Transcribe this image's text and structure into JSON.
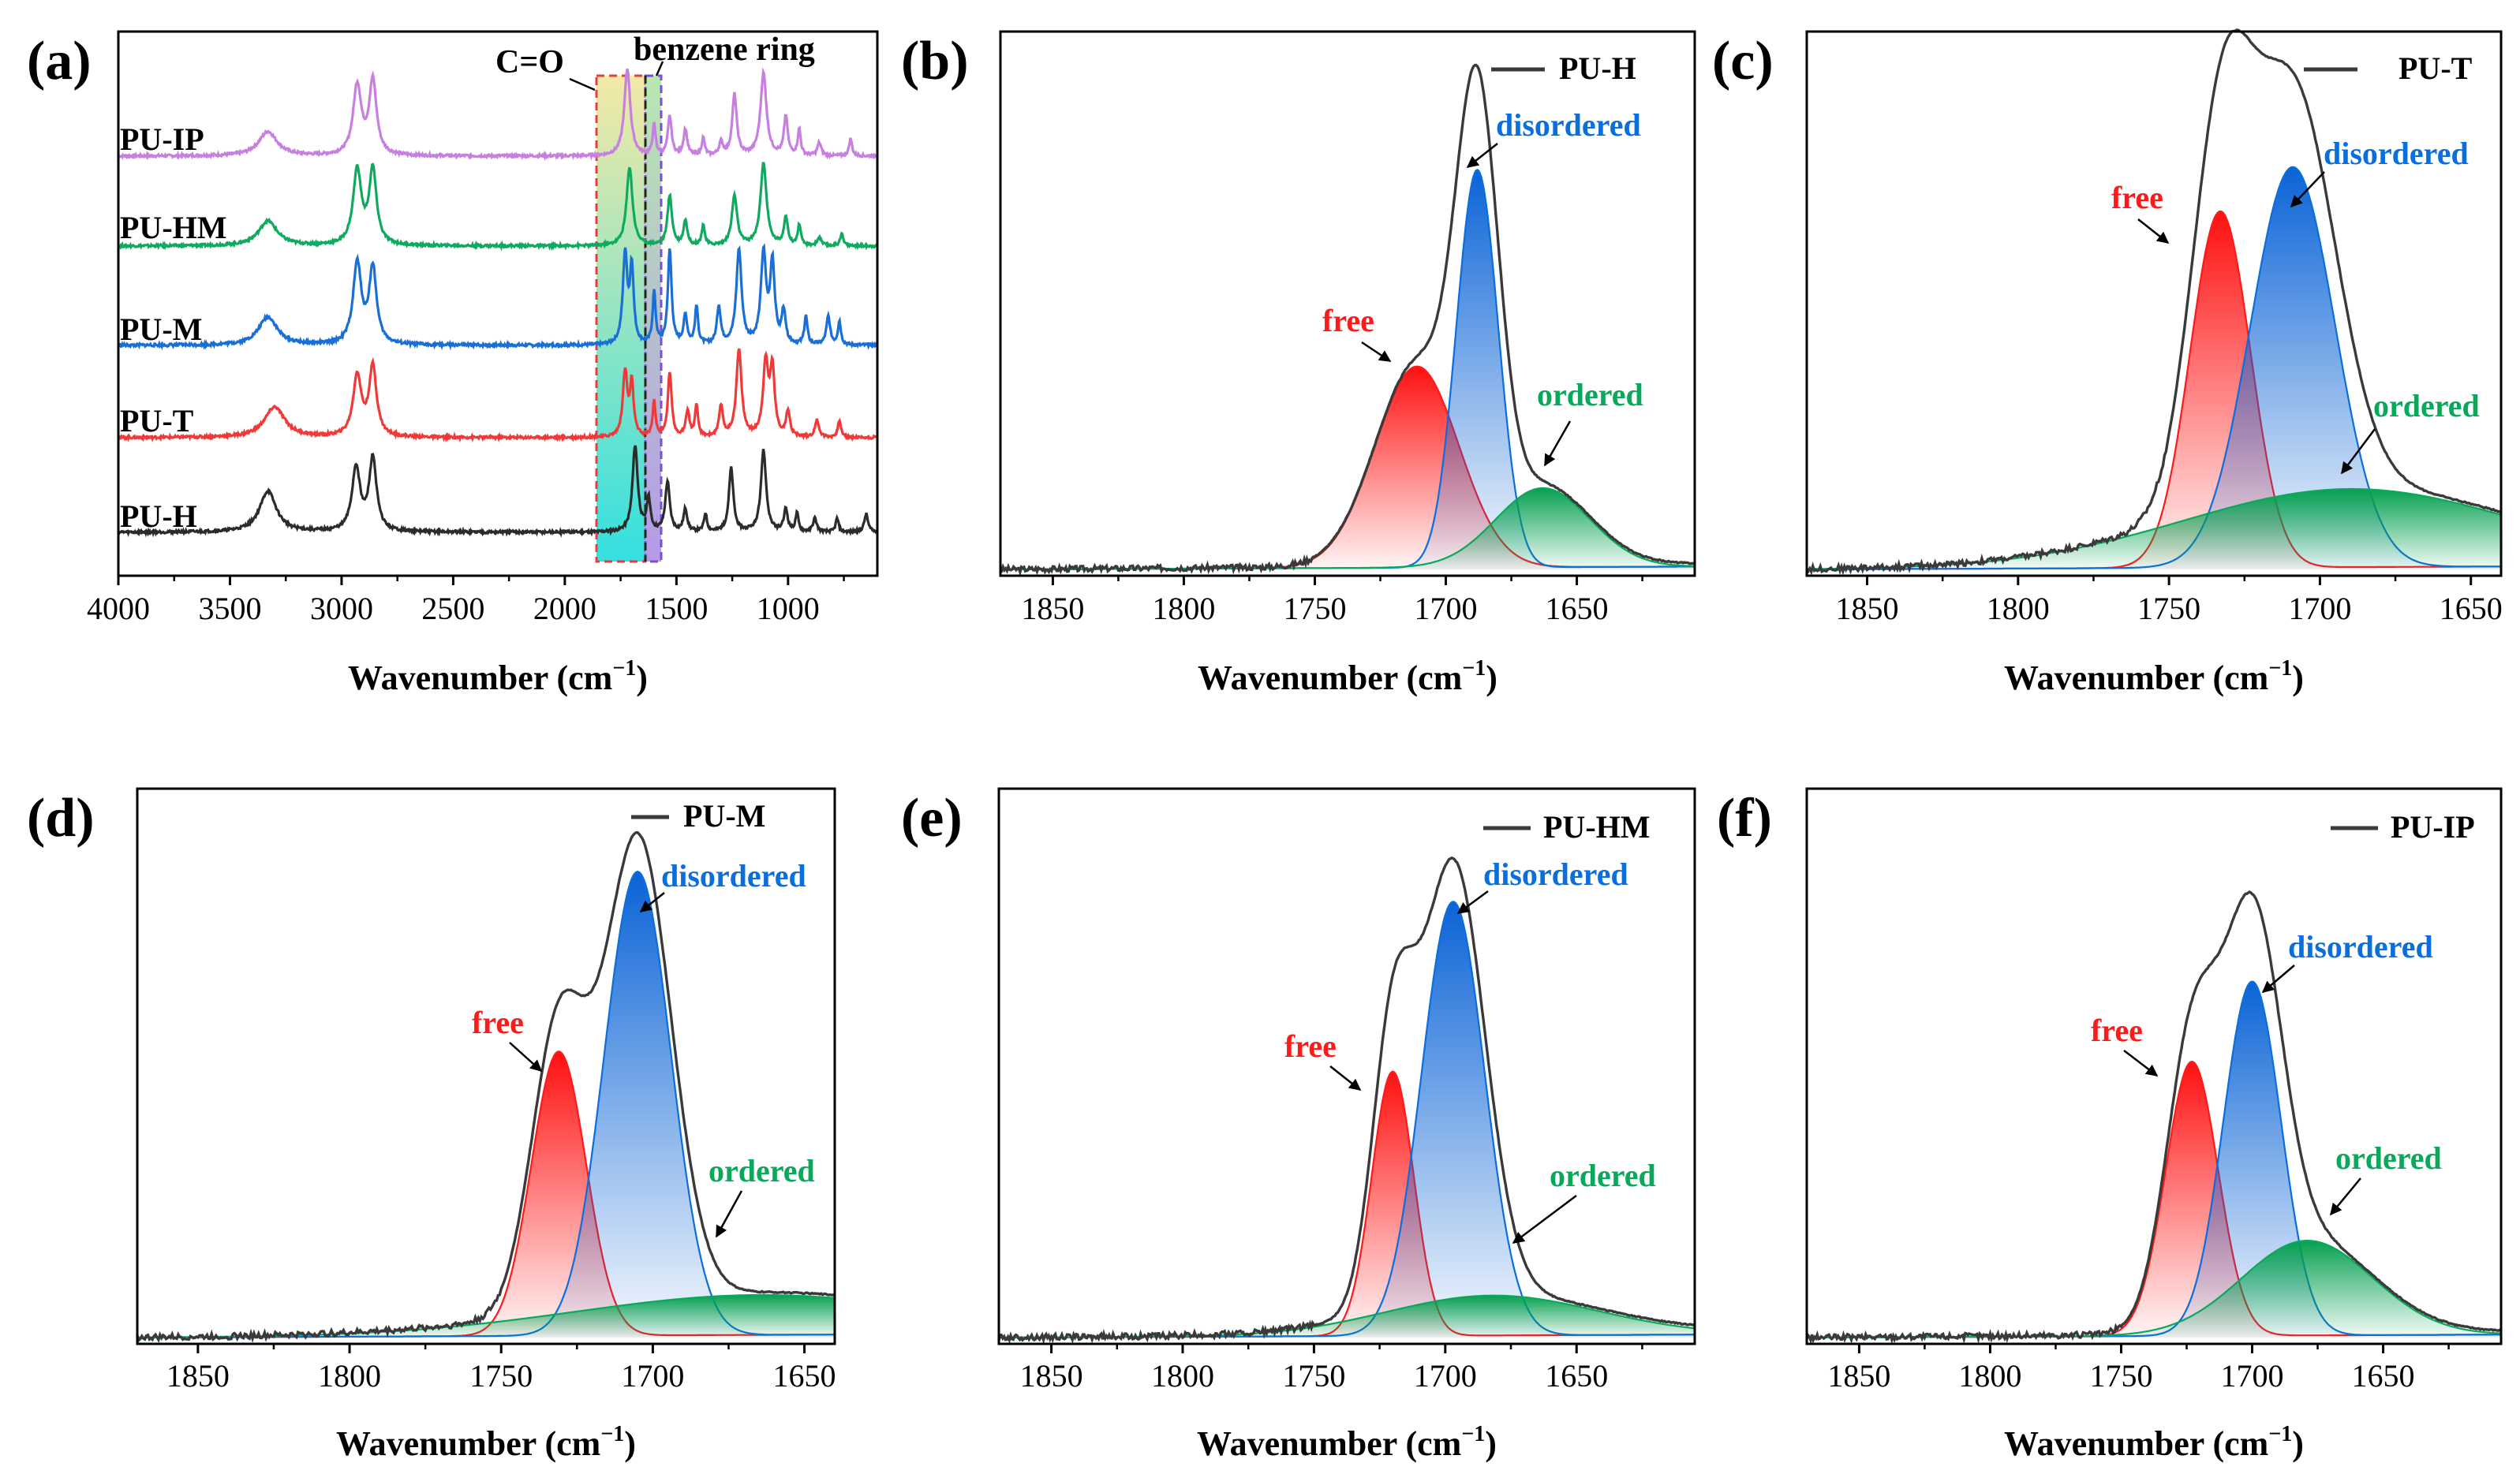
{
  "chart_data": [
    {
      "panel": "(a)",
      "type": "line",
      "xlabel": "Wavenumber (cm⁻¹)",
      "xlim": [
        4000,
        600
      ],
      "xticks": [
        4000,
        3500,
        3000,
        2500,
        2000,
        1500,
        1000
      ],
      "annotations": [
        "C=O",
        "benzene ring"
      ],
      "series": [
        {
          "name": "PU-IP",
          "color": "#c77fe0",
          "peaks": [
            [
              3330,
              0.28,
              50
            ],
            [
              2930,
              0.8,
              22
            ],
            [
              2860,
              0.85,
              20
            ],
            [
              1720,
              1.0,
              16
            ],
            [
              1600,
              0.35,
              8
            ],
            [
              1530,
              0.45,
              10
            ],
            [
              1460,
              0.3,
              10
            ],
            [
              1380,
              0.2,
              8
            ],
            [
              1300,
              0.15,
              10
            ],
            [
              1240,
              0.7,
              12
            ],
            [
              1110,
              0.95,
              16
            ],
            [
              1010,
              0.45,
              10
            ],
            [
              950,
              0.3,
              8
            ],
            [
              860,
              0.15,
              10
            ],
            [
              720,
              0.2,
              8
            ]
          ]
        },
        {
          "name": "PU-HM",
          "color": "#0faa60",
          "peaks": [
            [
              3330,
              0.3,
              50
            ],
            [
              2930,
              0.9,
              22
            ],
            [
              2860,
              0.9,
              20
            ],
            [
              1710,
              0.95,
              16
            ],
            [
              1530,
              0.6,
              12
            ],
            [
              1460,
              0.3,
              10
            ],
            [
              1380,
              0.25,
              8
            ],
            [
              1240,
              0.6,
              14
            ],
            [
              1110,
              1.0,
              16
            ],
            [
              1010,
              0.35,
              10
            ],
            [
              950,
              0.25,
              8
            ],
            [
              860,
              0.1,
              10
            ],
            [
              760,
              0.15,
              8
            ]
          ]
        },
        {
          "name": "PU-M",
          "color": "#1a6fd6",
          "peaks": [
            [
              3330,
              0.3,
              50
            ],
            [
              2930,
              0.85,
              22
            ],
            [
              2860,
              0.8,
              20
            ],
            [
              1730,
              0.95,
              12
            ],
            [
              1700,
              0.8,
              10
            ],
            [
              1600,
              0.55,
              8
            ],
            [
              1530,
              1.0,
              10
            ],
            [
              1460,
              0.3,
              10
            ],
            [
              1410,
              0.4,
              8
            ],
            [
              1310,
              0.4,
              10
            ],
            [
              1220,
              1.0,
              14
            ],
            [
              1110,
              0.95,
              14
            ],
            [
              1070,
              0.85,
              12
            ],
            [
              1020,
              0.35,
              10
            ],
            [
              920,
              0.3,
              8
            ],
            [
              820,
              0.3,
              10
            ],
            [
              770,
              0.25,
              8
            ]
          ]
        },
        {
          "name": "PU-T",
          "color": "#f03a3a",
          "peaks": [
            [
              3300,
              0.35,
              55
            ],
            [
              2930,
              0.7,
              22
            ],
            [
              2860,
              0.8,
              20
            ],
            [
              1730,
              0.75,
              12
            ],
            [
              1700,
              0.6,
              10
            ],
            [
              1600,
              0.4,
              8
            ],
            [
              1530,
              0.75,
              10
            ],
            [
              1450,
              0.3,
              10
            ],
            [
              1410,
              0.35,
              8
            ],
            [
              1300,
              0.35,
              10
            ],
            [
              1220,
              1.0,
              14
            ],
            [
              1100,
              0.85,
              14
            ],
            [
              1070,
              0.75,
              12
            ],
            [
              1000,
              0.3,
              10
            ],
            [
              870,
              0.2,
              10
            ],
            [
              770,
              0.2,
              8
            ]
          ]
        },
        {
          "name": "PU-H",
          "color": "#2b2b2b",
          "peaks": [
            [
              3330,
              0.45,
              45
            ],
            [
              2935,
              0.7,
              22
            ],
            [
              2860,
              0.8,
              20
            ],
            [
              1685,
              0.95,
              14
            ],
            [
              1625,
              0.35,
              10
            ],
            [
              1540,
              0.55,
              12
            ],
            [
              1460,
              0.25,
              10
            ],
            [
              1370,
              0.2,
              8
            ],
            [
              1255,
              0.7,
              12
            ],
            [
              1110,
              0.9,
              14
            ],
            [
              1010,
              0.25,
              10
            ],
            [
              960,
              0.2,
              8
            ],
            [
              880,
              0.15,
              10
            ],
            [
              780,
              0.15,
              8
            ],
            [
              650,
              0.2,
              10
            ]
          ]
        }
      ]
    },
    {
      "panel": "(b)",
      "type": "line",
      "title": "PU-H",
      "xlabel": "Wavenumber (cm⁻¹)",
      "xlim": [
        1870,
        1605
      ],
      "xticks": [
        1850,
        1800,
        1750,
        1700,
        1650
      ],
      "ylim": [
        0,
        1.07
      ],
      "baseline_left": 0.012,
      "components": [
        {
          "name": "free",
          "center": 1711,
          "height": 0.42,
          "width": 16
        },
        {
          "name": "disordered",
          "center": 1688,
          "height": 0.83,
          "width": 8
        },
        {
          "name": "ordered",
          "center": 1663,
          "height": 0.165,
          "width": 18
        }
      ]
    },
    {
      "panel": "(c)",
      "type": "line",
      "title": "PU-T",
      "xlabel": "Wavenumber (cm⁻¹)",
      "xlim": [
        1870,
        1640
      ],
      "xticks": [
        1850,
        1800,
        1750,
        1700,
        1650
      ],
      "ylim": [
        0,
        1.05
      ],
      "baseline_left": 0.012,
      "components": [
        {
          "name": "free",
          "center": 1733,
          "height": 0.73,
          "width": 10
        },
        {
          "name": "disordered",
          "center": 1709,
          "height": 0.82,
          "width": 14
        },
        {
          "name": "ordered",
          "center": 1690,
          "height": 0.16,
          "width": 55
        }
      ]
    },
    {
      "panel": "(d)",
      "type": "line",
      "title": "PU-M",
      "xlabel": "Wavenumber (cm⁻¹)",
      "xlim": [
        1870,
        1640
      ],
      "xticks": [
        1850,
        1800,
        1750,
        1700,
        1650
      ],
      "ylim": [
        0,
        1.05
      ],
      "baseline_left": 0.012,
      "components": [
        {
          "name": "free",
          "center": 1731,
          "height": 0.57,
          "width": 9
        },
        {
          "name": "disordered",
          "center": 1705,
          "height": 0.93,
          "width": 11
        },
        {
          "name": "ordered",
          "center": 1665,
          "height": 0.08,
          "width": 60
        }
      ]
    },
    {
      "panel": "(e)",
      "type": "line",
      "title": "PU-HM",
      "xlabel": "Wavenumber (cm⁻¹)",
      "xlim": [
        1870,
        1605
      ],
      "xticks": [
        1850,
        1800,
        1750,
        1700,
        1650
      ],
      "ylim": [
        0,
        1.05
      ],
      "baseline_left": 0.012,
      "components": [
        {
          "name": "free",
          "center": 1720,
          "height": 0.53,
          "width": 8
        },
        {
          "name": "disordered",
          "center": 1697,
          "height": 0.87,
          "width": 12
        },
        {
          "name": "ordered",
          "center": 1682,
          "height": 0.08,
          "width": 40
        }
      ]
    },
    {
      "panel": "(f)",
      "type": "line",
      "title": "PU-IP",
      "xlabel": "Wavenumber (cm⁻¹)",
      "xlim": [
        1870,
        1605
      ],
      "xticks": [
        1850,
        1800,
        1750,
        1700,
        1650
      ],
      "ylim": [
        0,
        1.05
      ],
      "baseline_left": 0.012,
      "components": [
        {
          "name": "free",
          "center": 1723,
          "height": 0.55,
          "width": 10
        },
        {
          "name": "disordered",
          "center": 1700,
          "height": 0.71,
          "width": 11
        },
        {
          "name": "ordered",
          "center": 1679,
          "height": 0.19,
          "width": 25
        }
      ]
    }
  ],
  "labels": {
    "panel_a": "(a)",
    "panel_b": "(b)",
    "panel_c": "(c)",
    "panel_d": "(d)",
    "panel_e": "(e)",
    "panel_f": "(f)",
    "xaxis_title": "Wavenumber (cm",
    "xaxis_sup": "−1",
    "xaxis_close": ")",
    "a_tick_4000": "4000",
    "a_tick_3500": "3500",
    "a_tick_3000": "3000",
    "a_tick_2500": "2500",
    "a_tick_2000": "2000",
    "a_tick_1500": "1500",
    "a_tick_1000": "1000",
    "tick_1850": "1850",
    "tick_1800": "1800",
    "tick_1750": "1750",
    "tick_1700": "1700",
    "tick_1650": "1650",
    "co_label": "C=O",
    "benzene_label": "benzene ring",
    "series_pu_ip": "PU-IP",
    "series_pu_hm": "PU-HM",
    "series_pu_m": "PU-M",
    "series_pu_t": "PU-T",
    "series_pu_h": "PU-H",
    "legend_b": "PU-H",
    "legend_c": "PU-T",
    "legend_d": "PU-M",
    "legend_e": "PU-HM",
    "legend_f": "PU-IP",
    "free": "free",
    "disordered": "disordered",
    "ordered": "ordered"
  },
  "colors": {
    "free": "#ff1a1a",
    "disordered": "#0a6fdc",
    "ordered": "#0aa85a",
    "envelope": "#3a3a3a"
  }
}
